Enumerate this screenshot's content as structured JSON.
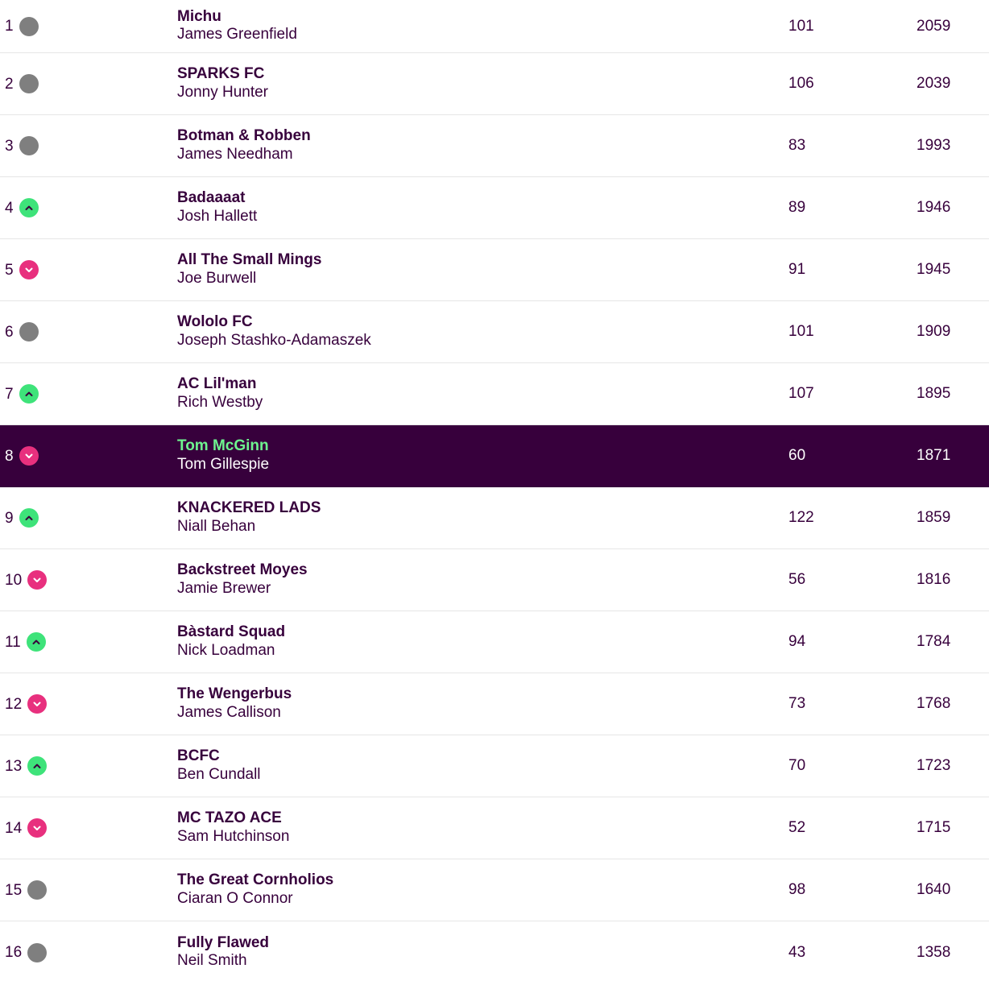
{
  "colors": {
    "text": "#37003c",
    "highlight_bg": "#37003c",
    "highlight_team": "#6ef58f",
    "movement_same": "#7f7f7f",
    "movement_up": "#3ee37a",
    "movement_down": "#e8307e"
  },
  "standings": {
    "rows": [
      {
        "rank": "1",
        "movement": "same",
        "movement_icon": "dot-icon",
        "team": "Michu",
        "manager": "James Greenfield",
        "gw": "101",
        "total": "2059"
      },
      {
        "rank": "2",
        "movement": "same",
        "movement_icon": "dot-icon",
        "team": "SPARKS FC",
        "manager": "Jonny Hunter",
        "gw": "106",
        "total": "2039"
      },
      {
        "rank": "3",
        "movement": "same",
        "movement_icon": "dot-icon",
        "team": "Botman & Robben",
        "manager": "James Needham",
        "gw": "83",
        "total": "1993"
      },
      {
        "rank": "4",
        "movement": "up",
        "movement_icon": "chevron-up-icon",
        "team": "Badaaaat",
        "manager": "Josh Hallett",
        "gw": "89",
        "total": "1946"
      },
      {
        "rank": "5",
        "movement": "down",
        "movement_icon": "chevron-down-icon",
        "team": "All The Small Mings",
        "manager": "Joe Burwell",
        "gw": "91",
        "total": "1945"
      },
      {
        "rank": "6",
        "movement": "same",
        "movement_icon": "dot-icon",
        "team": "Wololo FC",
        "manager": "Joseph Stashko-Adamaszek",
        "gw": "101",
        "total": "1909"
      },
      {
        "rank": "7",
        "movement": "up",
        "movement_icon": "chevron-up-icon",
        "team": "AC Lil'man",
        "manager": "Rich Westby",
        "gw": "107",
        "total": "1895"
      },
      {
        "rank": "8",
        "movement": "down",
        "movement_icon": "chevron-down-icon",
        "team": "Tom McGinn",
        "manager": "Tom Gillespie",
        "gw": "60",
        "total": "1871",
        "highlighted": true
      },
      {
        "rank": "9",
        "movement": "up",
        "movement_icon": "chevron-up-icon",
        "team": "KNACKERED LADS",
        "manager": "Niall Behan",
        "gw": "122",
        "total": "1859"
      },
      {
        "rank": "10",
        "movement": "down",
        "movement_icon": "chevron-down-icon",
        "team": "Backstreet Moyes",
        "manager": "Jamie Brewer",
        "gw": "56",
        "total": "1816"
      },
      {
        "rank": "11",
        "movement": "up",
        "movement_icon": "chevron-up-icon",
        "team": "Bàstard Squad",
        "manager": "Nick Loadman",
        "gw": "94",
        "total": "1784"
      },
      {
        "rank": "12",
        "movement": "down",
        "movement_icon": "chevron-down-icon",
        "team": "The Wengerbus",
        "manager": "James Callison",
        "gw": "73",
        "total": "1768"
      },
      {
        "rank": "13",
        "movement": "up",
        "movement_icon": "chevron-up-icon",
        "team": "BCFC",
        "manager": "Ben Cundall",
        "gw": "70",
        "total": "1723"
      },
      {
        "rank": "14",
        "movement": "down",
        "movement_icon": "chevron-down-icon",
        "team": "MC TAZO ACE",
        "manager": "Sam Hutchinson",
        "gw": "52",
        "total": "1715"
      },
      {
        "rank": "15",
        "movement": "same",
        "movement_icon": "dot-icon",
        "team": "The Great Cornholios",
        "manager": "Ciaran O Connor",
        "gw": "98",
        "total": "1640"
      },
      {
        "rank": "16",
        "movement": "same",
        "movement_icon": "dot-icon",
        "team": "Fully Flawed",
        "manager": "Neil Smith",
        "gw": "43",
        "total": "1358"
      }
    ]
  }
}
